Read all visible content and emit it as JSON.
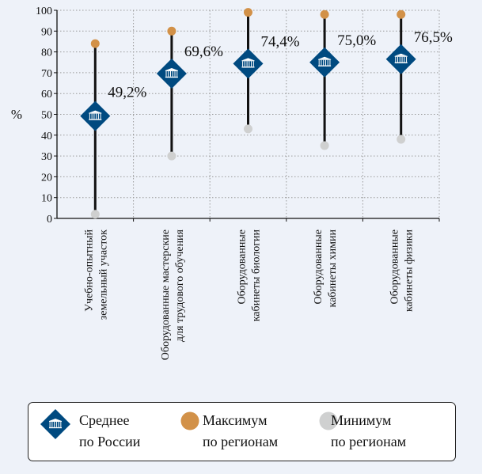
{
  "chart_data": {
    "type": "range-dot",
    "ylabel": "%",
    "ylim": [
      0,
      100
    ],
    "yticks": [
      "0",
      "10",
      "20",
      "30",
      "40",
      "50",
      "60",
      "70",
      "80",
      "90",
      "100"
    ],
    "grid": true,
    "categories": [
      [
        "Учебно-опытный",
        "земельный участок"
      ],
      [
        "Оборудованные мастерские",
        "для трудового обучения"
      ],
      [
        "Оборудованные",
        "кабинеты биологии"
      ],
      [
        "Оборудованные",
        "кабинеты химии"
      ],
      [
        "Оборудованные",
        "кабинеты физики"
      ]
    ],
    "series": [
      {
        "name": "Среднее по России",
        "values": [
          49.2,
          69.6,
          74.4,
          75.0,
          76.5
        ]
      },
      {
        "name": "Максимум по регионам",
        "values": [
          84,
          90,
          99,
          98,
          98
        ]
      },
      {
        "name": "Минимум по регионам",
        "values": [
          2,
          30,
          43,
          35,
          38
        ]
      }
    ],
    "data_labels": [
      "49,2%",
      "69,6%",
      "74,4%",
      "75,0%",
      "76,5%"
    ],
    "legend": {
      "placement": "bottom",
      "items": [
        {
          "line1": "Среднее",
          "line2": "по России"
        },
        {
          "line1": "Максимум",
          "line2": "по регионам"
        },
        {
          "line1": "Минимум",
          "line2": "по регионам"
        }
      ]
    },
    "colors": {
      "mean": "#004a80",
      "max": "#d29148",
      "min": "#cfd0d0",
      "line": "#111111",
      "grid": "#9a9a9a"
    }
  }
}
